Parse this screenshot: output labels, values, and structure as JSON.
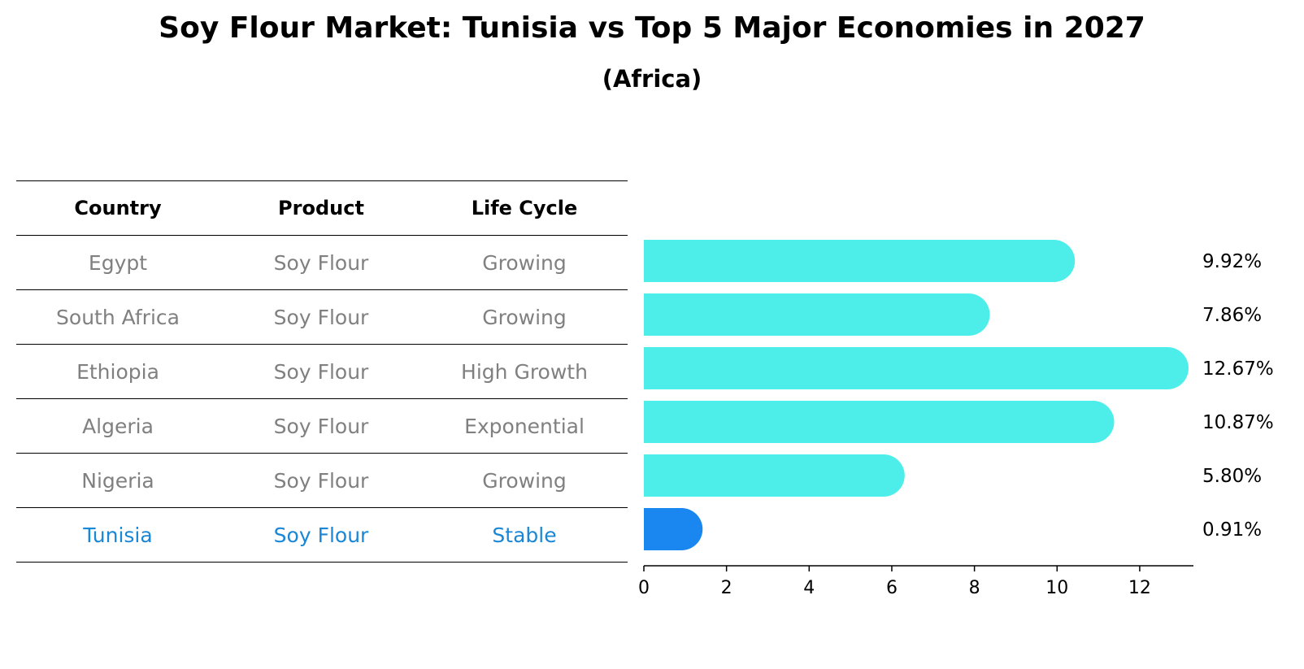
{
  "chart_data": {
    "type": "bar",
    "orientation": "horizontal",
    "title": "Soy Flour Market: Tunisia vs Top 5 Major Economies in 2027",
    "subtitle": "(Africa)",
    "table": {
      "headers": [
        "Country",
        "Product",
        "Life Cycle"
      ],
      "rows": [
        [
          "Egypt",
          "Soy Flour",
          "Growing"
        ],
        [
          "South Africa",
          "Soy Flour",
          "Growing"
        ],
        [
          "Ethiopia",
          "Soy Flour",
          "High Growth"
        ],
        [
          "Algeria",
          "Soy Flour",
          "Exponential"
        ],
        [
          "Nigeria",
          "Soy Flour",
          "Growing"
        ],
        [
          "Tunisia",
          "Soy Flour",
          "Stable"
        ]
      ]
    },
    "categories": [
      "Egypt",
      "South Africa",
      "Ethiopia",
      "Algeria",
      "Nigeria",
      "Tunisia"
    ],
    "values": [
      9.92,
      7.86,
      12.67,
      10.87,
      5.8,
      0.91
    ],
    "value_labels": [
      "9.92%",
      "7.86%",
      "12.67%",
      "10.87%",
      "5.80%",
      "0.91%"
    ],
    "highlight": "Tunisia",
    "xlim": [
      0,
      13.3
    ],
    "xticks": [
      0,
      2,
      4,
      6,
      8,
      10,
      12
    ],
    "grid": false,
    "colors": {
      "bar": "#4deeea",
      "highlight_bar": "#1a86f0",
      "highlight_text": "#1a86d6",
      "text_muted": "#808080"
    }
  }
}
